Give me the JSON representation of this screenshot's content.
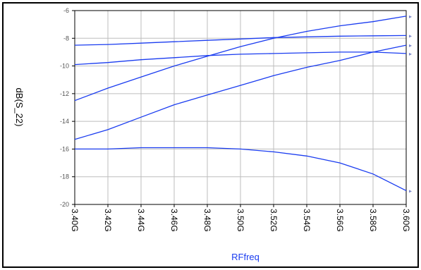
{
  "chart_data": {
    "type": "line",
    "xlabel": "RFfreq",
    "ylabel": "dB(S(2,2))",
    "ylabel_display": "dB(S_22)",
    "x": [
      3.4,
      3.42,
      3.44,
      3.46,
      3.48,
      3.5,
      3.52,
      3.54,
      3.56,
      3.58,
      3.6
    ],
    "x_tick_labels": [
      "3.40G",
      "3.42G",
      "3.44G",
      "3.46G",
      "3.48G",
      "3.50G",
      "3.52G",
      "3.54G",
      "3.56G",
      "3.58G",
      "3.60G"
    ],
    "xlim": [
      3.4,
      3.6
    ],
    "ylim": [
      -20,
      -6
    ],
    "y_ticks": [
      -20,
      -18,
      -16,
      -14,
      -12,
      -10,
      -8,
      -6
    ],
    "grid": true,
    "line_color": "#1a3cf0",
    "series": [
      {
        "values": [
          -8.5,
          -8.45,
          -8.35,
          -8.25,
          -8.15,
          -8.05,
          -7.95,
          -7.9,
          -7.85,
          -7.82,
          -7.8
        ]
      },
      {
        "values": [
          -9.9,
          -9.75,
          -9.55,
          -9.4,
          -9.25,
          -9.15,
          -9.1,
          -9.05,
          -9.0,
          -9.0,
          -9.1
        ]
      },
      {
        "values": [
          -12.5,
          -11.6,
          -10.8,
          -10.0,
          -9.3,
          -8.6,
          -8.0,
          -7.5,
          -7.1,
          -6.8,
          -6.4
        ]
      },
      {
        "values": [
          -15.3,
          -14.6,
          -13.7,
          -12.8,
          -12.1,
          -11.4,
          -10.7,
          -10.1,
          -9.6,
          -9.0,
          -8.5
        ]
      },
      {
        "values": [
          -16.0,
          -16.0,
          -15.9,
          -15.9,
          -15.9,
          -16.0,
          -16.2,
          -16.5,
          -17.0,
          -17.8,
          -19.0
        ]
      }
    ]
  }
}
